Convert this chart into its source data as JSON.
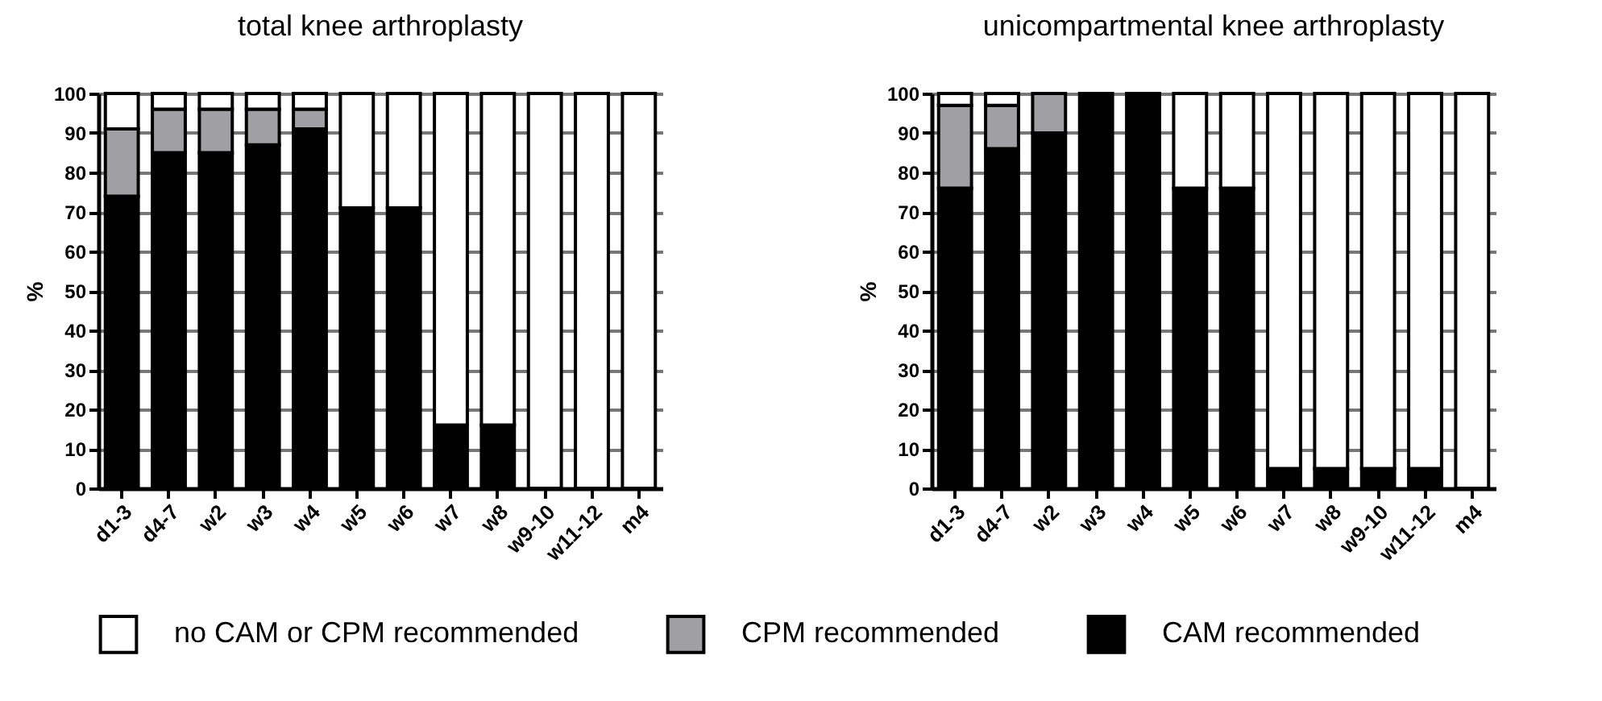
{
  "chart_data": [
    {
      "type": "bar",
      "title": "total knee arthroplasty",
      "ylabel": "%",
      "stacked": true,
      "grid": "y",
      "legend": "bottom",
      "categories": [
        "d1-3",
        "d4-7",
        "w2",
        "w3",
        "w4",
        "w5",
        "w6",
        "w7",
        "w8",
        "w9-10",
        "w11-12",
        "m4"
      ],
      "ylim": [
        0,
        100
      ],
      "yticks": [
        0,
        10,
        20,
        30,
        40,
        50,
        60,
        70,
        80,
        90,
        100
      ],
      "series": [
        {
          "name": "CAM recommended",
          "color": "#000000",
          "values": [
            74,
            85,
            85,
            87,
            91,
            71,
            71,
            16,
            16,
            0,
            0,
            0
          ]
        },
        {
          "name": "CPM recommended",
          "color": "#a0a0a4",
          "values": [
            17,
            11,
            11,
            9,
            5,
            0,
            0,
            0,
            0,
            0,
            0,
            0
          ]
        },
        {
          "name": "no CAM or CPM recommended",
          "color": "#ffffff",
          "values": [
            9,
            4,
            4,
            4,
            4,
            29,
            29,
            84,
            84,
            100,
            100,
            100
          ]
        }
      ]
    },
    {
      "type": "bar",
      "title": "unicompartmental knee arthroplasty",
      "ylabel": "%",
      "stacked": true,
      "grid": "y",
      "legend": "bottom",
      "categories": [
        "d1-3",
        "d4-7",
        "w2",
        "w3",
        "w4",
        "w5",
        "w6",
        "w7",
        "w8",
        "w9-10",
        "w11-12",
        "m4"
      ],
      "ylim": [
        0,
        100
      ],
      "yticks": [
        0,
        10,
        20,
        30,
        40,
        50,
        60,
        70,
        80,
        90,
        100
      ],
      "series": [
        {
          "name": "CAM recommended",
          "color": "#000000",
          "values": [
            76,
            86,
            90,
            100,
            100,
            76,
            76,
            5,
            5,
            5,
            5,
            0
          ]
        },
        {
          "name": "CPM recommended",
          "color": "#a0a0a4",
          "values": [
            21,
            11,
            10,
            0,
            0,
            0,
            0,
            0,
            0,
            0,
            0,
            0
          ]
        },
        {
          "name": "no CAM or CPM recommended",
          "color": "#ffffff",
          "values": [
            3,
            3,
            0,
            0,
            0,
            24,
            24,
            95,
            95,
            95,
            95,
            100
          ]
        }
      ]
    }
  ]
}
